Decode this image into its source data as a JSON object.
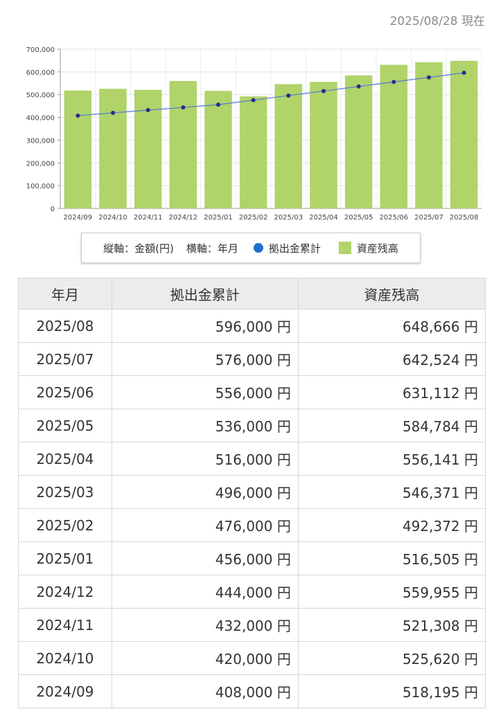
{
  "as_of": "2025/08/28 現在",
  "legend": {
    "y_axis": "縦軸：金額(円)",
    "x_axis": "横軸：年月",
    "series_line": "拠出金累計",
    "series_bar": "資産残高"
  },
  "colors": {
    "bar": "#b0d36a",
    "line": "#1f6fcf",
    "line_stroke": "#5b7fd1",
    "marker": "#2b2a8a"
  },
  "chart_data": {
    "type": "bar",
    "categories": [
      "2024/09",
      "2024/10",
      "2024/11",
      "2024/12",
      "2025/01",
      "2025/02",
      "2025/03",
      "2025/04",
      "2025/05",
      "2025/06",
      "2025/07",
      "2025/08"
    ],
    "series": [
      {
        "name": "資産残高",
        "type": "bar",
        "values": [
          518195,
          525620,
          521308,
          559955,
          516505,
          492372,
          546371,
          556141,
          584784,
          631112,
          642524,
          648666
        ]
      },
      {
        "name": "拠出金累計",
        "type": "line",
        "values": [
          408000,
          420000,
          432000,
          444000,
          456000,
          476000,
          496000,
          516000,
          536000,
          556000,
          576000,
          596000
        ]
      }
    ],
    "ylim": [
      0,
      700000
    ],
    "yticks": [
      "0",
      "100,000",
      "200,000",
      "300,000",
      "400,000",
      "500,000",
      "600,000",
      "700,000"
    ],
    "grid": true
  },
  "table": {
    "headers": [
      "年月",
      "拠出金累計",
      "資産残高"
    ],
    "rows": [
      [
        "2025/08",
        "596,000 円",
        "648,666 円"
      ],
      [
        "2025/07",
        "576,000 円",
        "642,524 円"
      ],
      [
        "2025/06",
        "556,000 円",
        "631,112 円"
      ],
      [
        "2025/05",
        "536,000 円",
        "584,784 円"
      ],
      [
        "2025/04",
        "516,000 円",
        "556,141 円"
      ],
      [
        "2025/03",
        "496,000 円",
        "546,371 円"
      ],
      [
        "2025/02",
        "476,000 円",
        "492,372 円"
      ],
      [
        "2025/01",
        "456,000 円",
        "516,505 円"
      ],
      [
        "2024/12",
        "444,000 円",
        "559,955 円"
      ],
      [
        "2024/11",
        "432,000 円",
        "521,308 円"
      ],
      [
        "2024/10",
        "420,000 円",
        "525,620 円"
      ],
      [
        "2024/09",
        "408,000 円",
        "518,195 円"
      ]
    ]
  }
}
